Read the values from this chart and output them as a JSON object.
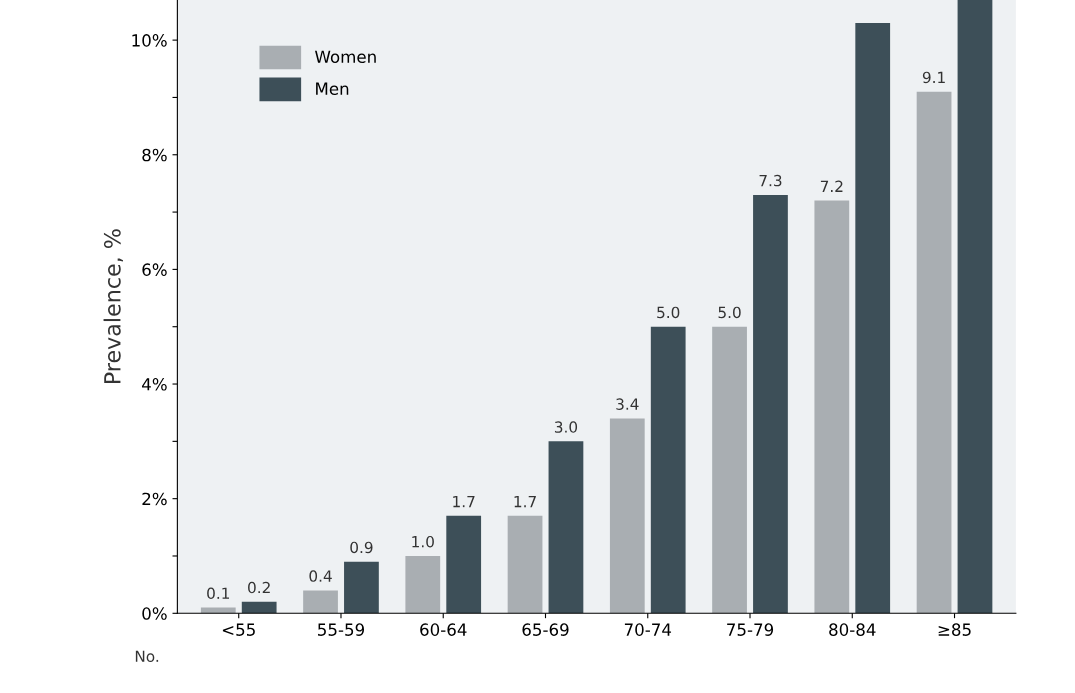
{
  "chart_data": {
    "type": "bar",
    "categories": [
      "<55",
      "55-59",
      "60-64",
      "65-69",
      "70-74",
      "75-79",
      "80-84",
      "≥85"
    ],
    "series": [
      {
        "name": "Women",
        "color": "#a9aeb2",
        "values": [
          0.1,
          0.4,
          1.0,
          1.7,
          3.4,
          5.0,
          7.2,
          9.1
        ],
        "value_labels": [
          "0.1",
          "0.4",
          "1.0",
          "1.7",
          "3.4",
          "5.0",
          "7.2",
          "9.1"
        ]
      },
      {
        "name": "Men",
        "color": "#3d4f58",
        "values": [
          0.2,
          0.9,
          1.7,
          3.0,
          5.0,
          7.3,
          10.3,
          10.7
        ],
        "value_labels": [
          "0.2",
          "0.9",
          "1.7",
          "3.0",
          "5.0",
          "7.3",
          null,
          null
        ]
      }
    ],
    "ylabel": "Prevalence, %",
    "ylim": [
      0,
      10.7
    ],
    "yticks": [
      {
        "value": 0,
        "label": "0%"
      },
      {
        "value": 1,
        "label": null
      },
      {
        "value": 2,
        "label": "2%"
      },
      {
        "value": 3,
        "label": null
      },
      {
        "value": 4,
        "label": "4%"
      },
      {
        "value": 5,
        "label": null
      },
      {
        "value": 6,
        "label": "6%"
      },
      {
        "value": 7,
        "label": null
      },
      {
        "value": 8,
        "label": "8%"
      },
      {
        "value": 9,
        "label": null
      },
      {
        "value": 10,
        "label": "10%"
      }
    ],
    "annotations": [
      "No."
    ],
    "legend": "top left",
    "grid": false
  }
}
